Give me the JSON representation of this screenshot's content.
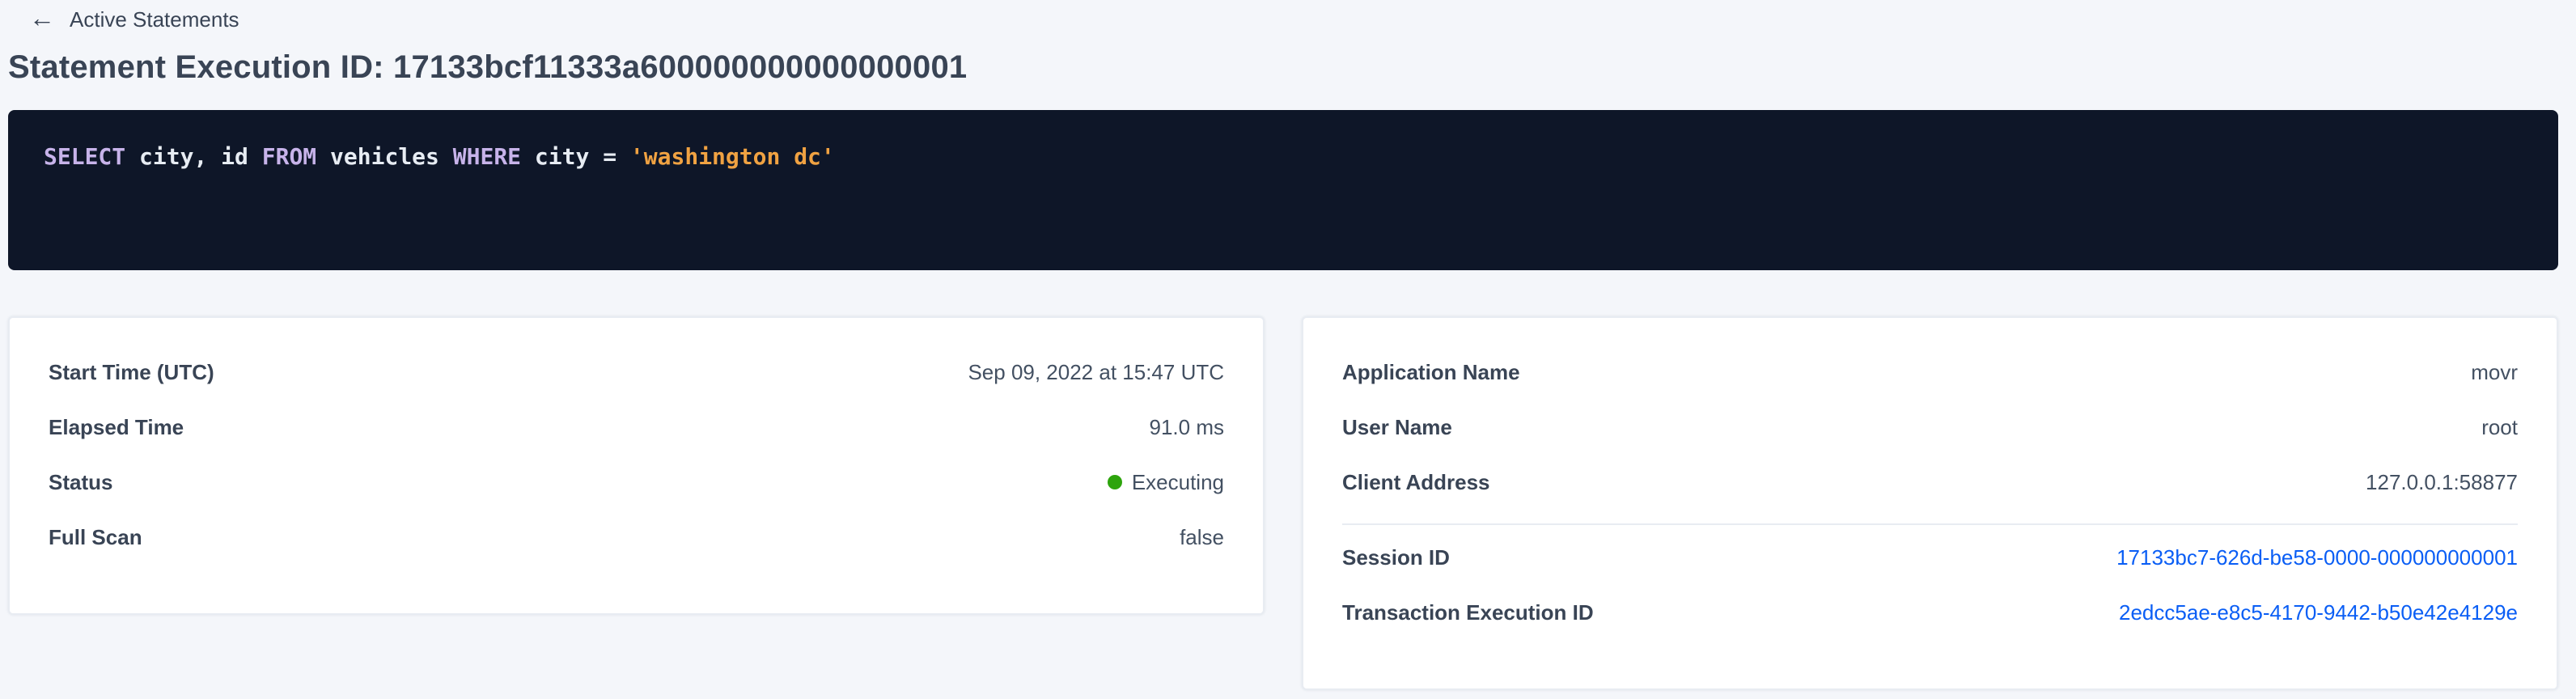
{
  "colors": {
    "link_blue": "#0a5ef5",
    "status_green": "#2da40c",
    "sql_keyword": "#c7b3ea",
    "sql_string": "#f0a242",
    "code_background": "#0e1628"
  },
  "back_link": {
    "icon": "left-arrow",
    "arrow_glyph": "←",
    "label": "Active Statements"
  },
  "header": {
    "title_prefix": "Statement Execution ID:",
    "execution_id": "17133bcf11333a600000000000000001"
  },
  "sql": {
    "full_text": "SELECT city, id FROM vehicles WHERE city = 'washington dc'",
    "tokens": [
      {
        "text": "SELECT",
        "type": "keyword"
      },
      {
        "text": " city, id ",
        "type": "plain"
      },
      {
        "text": "FROM",
        "type": "keyword"
      },
      {
        "text": " vehicles ",
        "type": "plain"
      },
      {
        "text": "WHERE",
        "type": "keyword"
      },
      {
        "text": " city = ",
        "type": "plain"
      },
      {
        "text": "'washington dc'",
        "type": "string"
      }
    ]
  },
  "left_card": {
    "rows": [
      {
        "label": "Start Time (UTC)",
        "value": "Sep 09, 2022 at 15:47 UTC"
      },
      {
        "label": "Elapsed Time",
        "value": "91.0 ms"
      },
      {
        "label": "Status",
        "value": "Executing"
      },
      {
        "label": "Full Scan",
        "value": "false"
      }
    ]
  },
  "right_card": {
    "rows": [
      {
        "label": "Application Name",
        "value": "movr"
      },
      {
        "label": "User Name",
        "value": "root"
      },
      {
        "label": "Client Address",
        "value": "127.0.0.1:58877"
      }
    ],
    "link_rows": [
      {
        "label": "Session ID",
        "value": "17133bc7-626d-be58-0000-000000000001"
      },
      {
        "label": "Transaction Execution ID",
        "value": "2edcc5ae-e8c5-4170-9442-b50e42e4129e"
      }
    ]
  }
}
